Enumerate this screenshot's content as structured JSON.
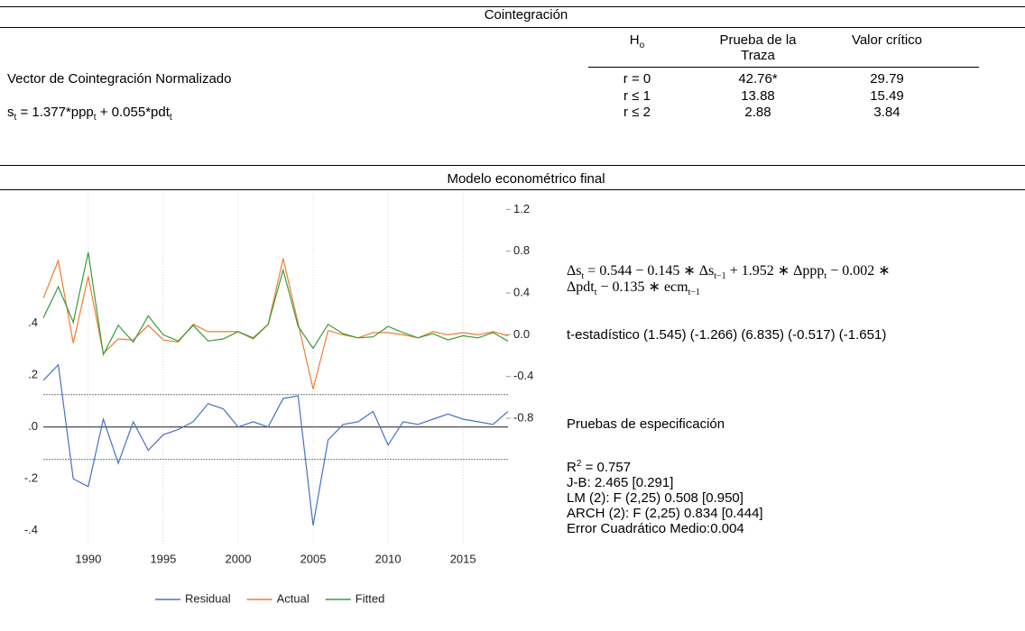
{
  "cointegration": {
    "title": "Cointegración",
    "heading": "Vector de Cointegración Normalizado",
    "vector": [
      "s",
      {
        "sub": "t"
      },
      " = 1.377*ppp",
      {
        "sub": "t"
      },
      " + 0.055*pdt",
      {
        "sub": "t"
      }
    ],
    "table": {
      "headers": [
        [
          "H",
          {
            "sub": "o"
          }
        ],
        "Prueba de la Traza",
        "Valor crítico"
      ],
      "rows": [
        [
          "r = 0",
          "42.76*",
          "29.79"
        ],
        [
          "r ≤ 1",
          "13.88",
          "15.49"
        ],
        [
          "r ≤ 2",
          "2.88",
          "3.84"
        ]
      ]
    }
  },
  "model": {
    "title": "Modelo econométrico final",
    "equation": [
      [
        "Δs",
        {
          "sub": "t"
        },
        " = 0.544 − 0.145 ∗ Δs",
        {
          "sub": "t−1"
        },
        " + 1.952 ∗ Δppp",
        {
          "sub": "t"
        },
        " −  0.002 ∗"
      ],
      [
        "Δpdt",
        {
          "sub": "t"
        },
        " − 0.135 ∗ ecm",
        {
          "sub": "t−1"
        }
      ]
    ],
    "t_stats": "t-estadístico (1.545) (-1.266) (6.835) (-0.517) (-1.651)",
    "tests_title": "Pruebas de especificación",
    "tests": [
      [
        "R",
        {
          "sup": "2"
        },
        " = 0.757"
      ],
      "J-B: 2.465 [0.291]",
      "LM (2): F (2,25) 0.508 [0.950]",
      "ARCH (2): F (2,25) 0.834 [0.444]",
      "Error Cuadrático Medio:0.004"
    ]
  },
  "chart_data": {
    "type": "line",
    "x": [
      1987,
      1988,
      1989,
      1990,
      1991,
      1992,
      1993,
      1994,
      1995,
      1996,
      1997,
      1998,
      1999,
      2000,
      2001,
      2002,
      2003,
      2004,
      2005,
      2006,
      2007,
      2008,
      2009,
      2010,
      2011,
      2012,
      2013,
      2014,
      2015,
      2016,
      2017,
      2018
    ],
    "xlim": [
      1987,
      2018
    ],
    "xticks": [
      1990,
      1995,
      2000,
      2005,
      2010,
      2015
    ],
    "ylim": [
      -0.45,
      0.9
    ],
    "yticks": [
      {
        "value": 0.4,
        "label": ".4"
      },
      {
        "value": 0.2,
        "label": ".2"
      },
      {
        "value": 0,
        "label": ".0"
      },
      {
        "value": -0.2,
        "label": "-.2"
      },
      {
        "value": -0.4,
        "label": "-.4"
      }
    ],
    "y2lim": [
      -2.0,
      1.35
    ],
    "y2ticks": [
      1.2,
      0.8,
      0.4,
      {
        "value": 0,
        "label": "0.0"
      },
      -0.4,
      -0.8
    ],
    "se_lines": [
      0.125,
      -0.125
    ],
    "grid": true,
    "legend": "bottom",
    "series": [
      {
        "name": "Residual",
        "color": "#4472c4",
        "values": [
          0.18,
          0.24,
          -0.2,
          -0.23,
          0.03,
          -0.14,
          0.02,
          -0.09,
          -0.03,
          -0.01,
          0.02,
          0.09,
          0.07,
          0.0,
          0.02,
          0.0,
          0.11,
          0.12,
          -0.38,
          -0.05,
          0.01,
          0.02,
          0.06,
          -0.07,
          0.02,
          0.01,
          0.03,
          0.05,
          0.03,
          0.02,
          0.01,
          0.06
        ]
      },
      {
        "name": "Actual",
        "color": "#ed7d31",
        "axis": "y2",
        "values": [
          0.35,
          0.71,
          -0.08,
          0.56,
          -0.18,
          -0.04,
          -0.05,
          0.09,
          -0.05,
          -0.07,
          0.1,
          0.03,
          0.03,
          0.03,
          -0.04,
          0.1,
          0.73,
          0.11,
          -0.52,
          0.04,
          0.0,
          -0.03,
          0.02,
          0.02,
          0.0,
          -0.03,
          0.03,
          0.0,
          0.02,
          0.0,
          0.03,
          -0.01
        ]
      },
      {
        "name": "Fitted",
        "color": "#3a9a3a",
        "axis": "y2",
        "values": [
          0.16,
          0.46,
          0.12,
          0.79,
          -0.19,
          0.09,
          -0.07,
          0.18,
          0.0,
          -0.06,
          0.09,
          -0.06,
          -0.04,
          0.03,
          -0.03,
          0.1,
          0.62,
          0.08,
          -0.13,
          0.1,
          0.01,
          -0.03,
          -0.02,
          0.08,
          0.02,
          -0.03,
          0.01,
          -0.05,
          -0.01,
          -0.03,
          0.02,
          -0.06
        ]
      }
    ]
  }
}
